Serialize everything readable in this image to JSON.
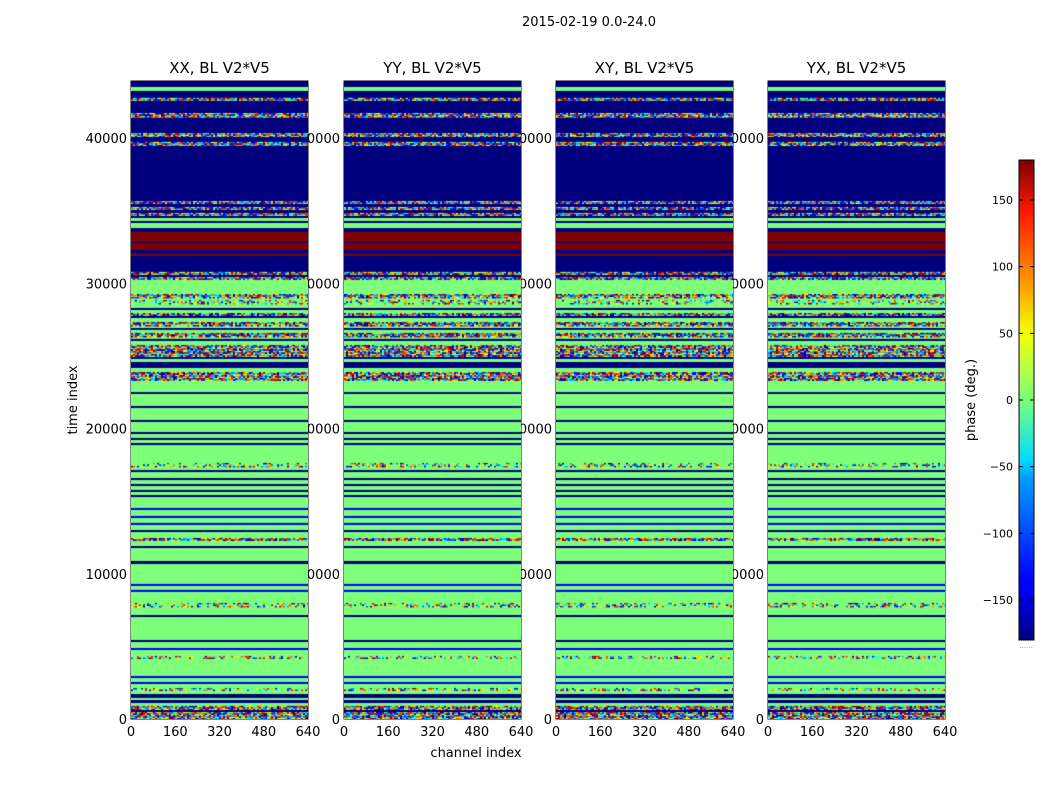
{
  "chart_data": {
    "type": "heatmap",
    "title": "2015-02-19 0.0-24.0",
    "xlabel": "channel index",
    "ylabel": "time index",
    "xlim": [
      0,
      640
    ],
    "ylim": [
      0,
      43925
    ],
    "xticks": [
      "0",
      "160",
      "320",
      "480",
      "640"
    ],
    "yticks": [
      "0",
      "10000",
      "20000",
      "30000",
      "40000"
    ],
    "yticks_values": [
      0,
      10000,
      20000,
      30000,
      40000
    ],
    "xticks_values": [
      0,
      160,
      320,
      480,
      640
    ],
    "panels": [
      {
        "title": "XX, BL V2*V5",
        "seed": 11
      },
      {
        "title": "YY, BL V2*V5",
        "seed": 23
      },
      {
        "title": "XY, BL V2*V5",
        "seed": 37
      },
      {
        "title": "YX, BL V2*V5",
        "seed": 53
      }
    ],
    "background_phase": 0,
    "bands": [
      [
        43510,
        43925,
        "navy"
      ],
      [
        43240,
        43510,
        "green"
      ],
      [
        42760,
        43240,
        "navy"
      ],
      [
        42550,
        42760,
        "noise"
      ],
      [
        41720,
        42550,
        "navy"
      ],
      [
        41380,
        41720,
        "noise"
      ],
      [
        40340,
        41380,
        "navy"
      ],
      [
        40070,
        40340,
        "noise"
      ],
      [
        39730,
        40070,
        "navy"
      ],
      [
        39450,
        39730,
        "noise"
      ],
      [
        35660,
        39450,
        "navy"
      ],
      [
        35460,
        35660,
        "noise"
      ],
      [
        35250,
        35460,
        "navy"
      ],
      [
        35040,
        35250,
        "noise"
      ],
      [
        34840,
        35040,
        "navy"
      ],
      [
        34630,
        34840,
        "noise"
      ],
      [
        34490,
        34630,
        "navy"
      ],
      [
        34290,
        34490,
        "green"
      ],
      [
        34150,
        34290,
        "navy"
      ],
      [
        33800,
        34150,
        "green"
      ],
      [
        33530,
        33800,
        "navy"
      ],
      [
        32840,
        33530,
        "red"
      ],
      [
        32770,
        32840,
        "navy"
      ],
      [
        32290,
        32770,
        "red"
      ],
      [
        32020,
        32290,
        "navy"
      ],
      [
        31880,
        32020,
        "red"
      ],
      [
        30780,
        31880,
        "navy"
      ],
      [
        30570,
        30780,
        "noise"
      ],
      [
        30430,
        30570,
        "navy"
      ],
      [
        30290,
        30430,
        "noise"
      ],
      [
        29050,
        29260,
        "noise"
      ],
      [
        28640,
        28850,
        "sparse"
      ],
      [
        28160,
        28300,
        "navy"
      ],
      [
        27750,
        27950,
        "noise"
      ],
      [
        27610,
        27750,
        "navy"
      ],
      [
        27060,
        27330,
        "noise"
      ],
      [
        26790,
        26920,
        "navy"
      ],
      [
        26300,
        26580,
        "noise"
      ],
      [
        26030,
        26170,
        "navy"
      ],
      [
        24990,
        25750,
        "noise"
      ],
      [
        24790,
        24920,
        "navy"
      ],
      [
        24170,
        24580,
        "navy"
      ],
      [
        23340,
        23890,
        "noise"
      ],
      [
        22380,
        22510,
        "navy"
      ],
      [
        21410,
        21550,
        "navy"
      ],
      [
        20450,
        20590,
        "navy"
      ],
      [
        19620,
        19760,
        "navy"
      ],
      [
        19210,
        19350,
        "navy"
      ],
      [
        18860,
        19000,
        "navy"
      ],
      [
        17420,
        17630,
        "sparse"
      ],
      [
        17000,
        17140,
        "navy"
      ],
      [
        16450,
        16590,
        "navy"
      ],
      [
        16040,
        16180,
        "navy"
      ],
      [
        15630,
        15770,
        "navy"
      ],
      [
        15280,
        15420,
        "navy"
      ],
      [
        14390,
        14530,
        "blue"
      ],
      [
        13840,
        13980,
        "blue"
      ],
      [
        13360,
        13500,
        "blue"
      ],
      [
        12870,
        13010,
        "navy"
      ],
      [
        12260,
        12460,
        "noise"
      ],
      [
        11770,
        11910,
        "navy"
      ],
      [
        10670,
        10880,
        "navy"
      ],
      [
        9160,
        9300,
        "blue"
      ],
      [
        8750,
        8890,
        "blue"
      ],
      [
        7780,
        7990,
        "sparse"
      ],
      [
        7020,
        7160,
        "navy"
      ],
      [
        5300,
        5440,
        "navy"
      ],
      [
        4750,
        4890,
        "blue"
      ],
      [
        4200,
        4340,
        "sparse"
      ],
      [
        2820,
        2960,
        "blue"
      ],
      [
        2410,
        2550,
        "blue"
      ],
      [
        1930,
        2130,
        "sparse"
      ],
      [
        1450,
        1720,
        "navy"
      ],
      [
        1100,
        1310,
        "navy"
      ],
      [
        620,
        900,
        "noise"
      ],
      [
        480,
        620,
        "navy"
      ],
      [
        0,
        480,
        "noise"
      ]
    ],
    "colorbar": {
      "label": "phase (deg.)",
      "range": [
        -180,
        180
      ],
      "ticks": [
        "150",
        "100",
        "50",
        "0",
        "−50",
        "−100",
        "−150"
      ],
      "tick_values": [
        150,
        100,
        50,
        0,
        -50,
        -100,
        -150
      ],
      "colormap": "jet",
      "footer": "......"
    }
  }
}
